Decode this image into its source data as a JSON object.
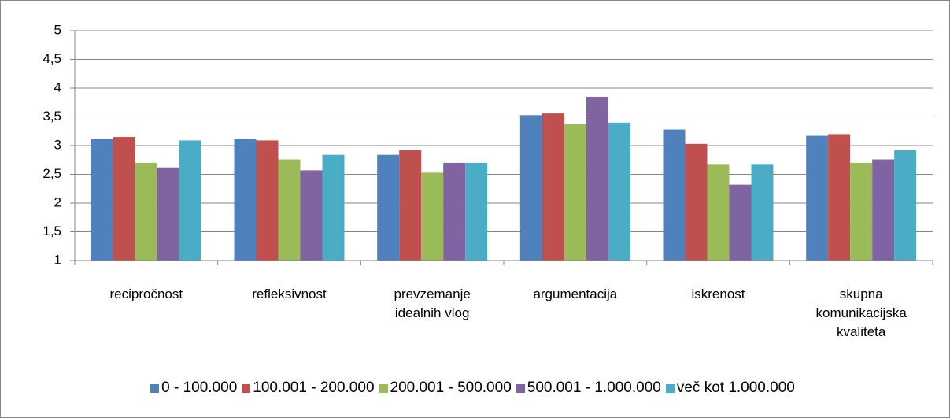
{
  "chart_data": {
    "type": "bar",
    "categories": [
      "recipročnost",
      "refleksivnost",
      "prevzemanje idealnih vlog",
      "argumentacija",
      "iskrenost",
      "skupna komunikacijska kvaliteta"
    ],
    "series": [
      {
        "name": "0 - 100.000",
        "color": "#4f81bd",
        "values": [
          3.12,
          3.12,
          2.84,
          3.53,
          3.28,
          3.17
        ]
      },
      {
        "name": "100.001 - 200.000",
        "color": "#c0504d",
        "values": [
          3.15,
          3.09,
          2.92,
          3.56,
          3.03,
          3.2
        ]
      },
      {
        "name": "200.001 - 500.000",
        "color": "#9bbb59",
        "values": [
          2.7,
          2.76,
          2.53,
          3.37,
          2.68,
          2.7
        ]
      },
      {
        "name": "500.001 - 1.000.000",
        "color": "#8064a2",
        "values": [
          2.62,
          2.57,
          2.7,
          3.85,
          2.32,
          2.76
        ]
      },
      {
        "name": "več kot 1.000.000",
        "color": "#4bacc6",
        "values": [
          3.09,
          2.84,
          2.7,
          3.4,
          2.68,
          2.92
        ]
      }
    ],
    "ylim": [
      1,
      5
    ],
    "yticks": [
      1,
      {
        "value": 1.5,
        "label": "1,5"
      },
      2,
      {
        "value": 2.5,
        "label": "2,5"
      },
      3,
      {
        "value": 3.5,
        "label": "3,5"
      },
      4,
      {
        "value": 4.5,
        "label": "4,5"
      },
      5
    ],
    "grid": true,
    "legend": "bottom"
  }
}
